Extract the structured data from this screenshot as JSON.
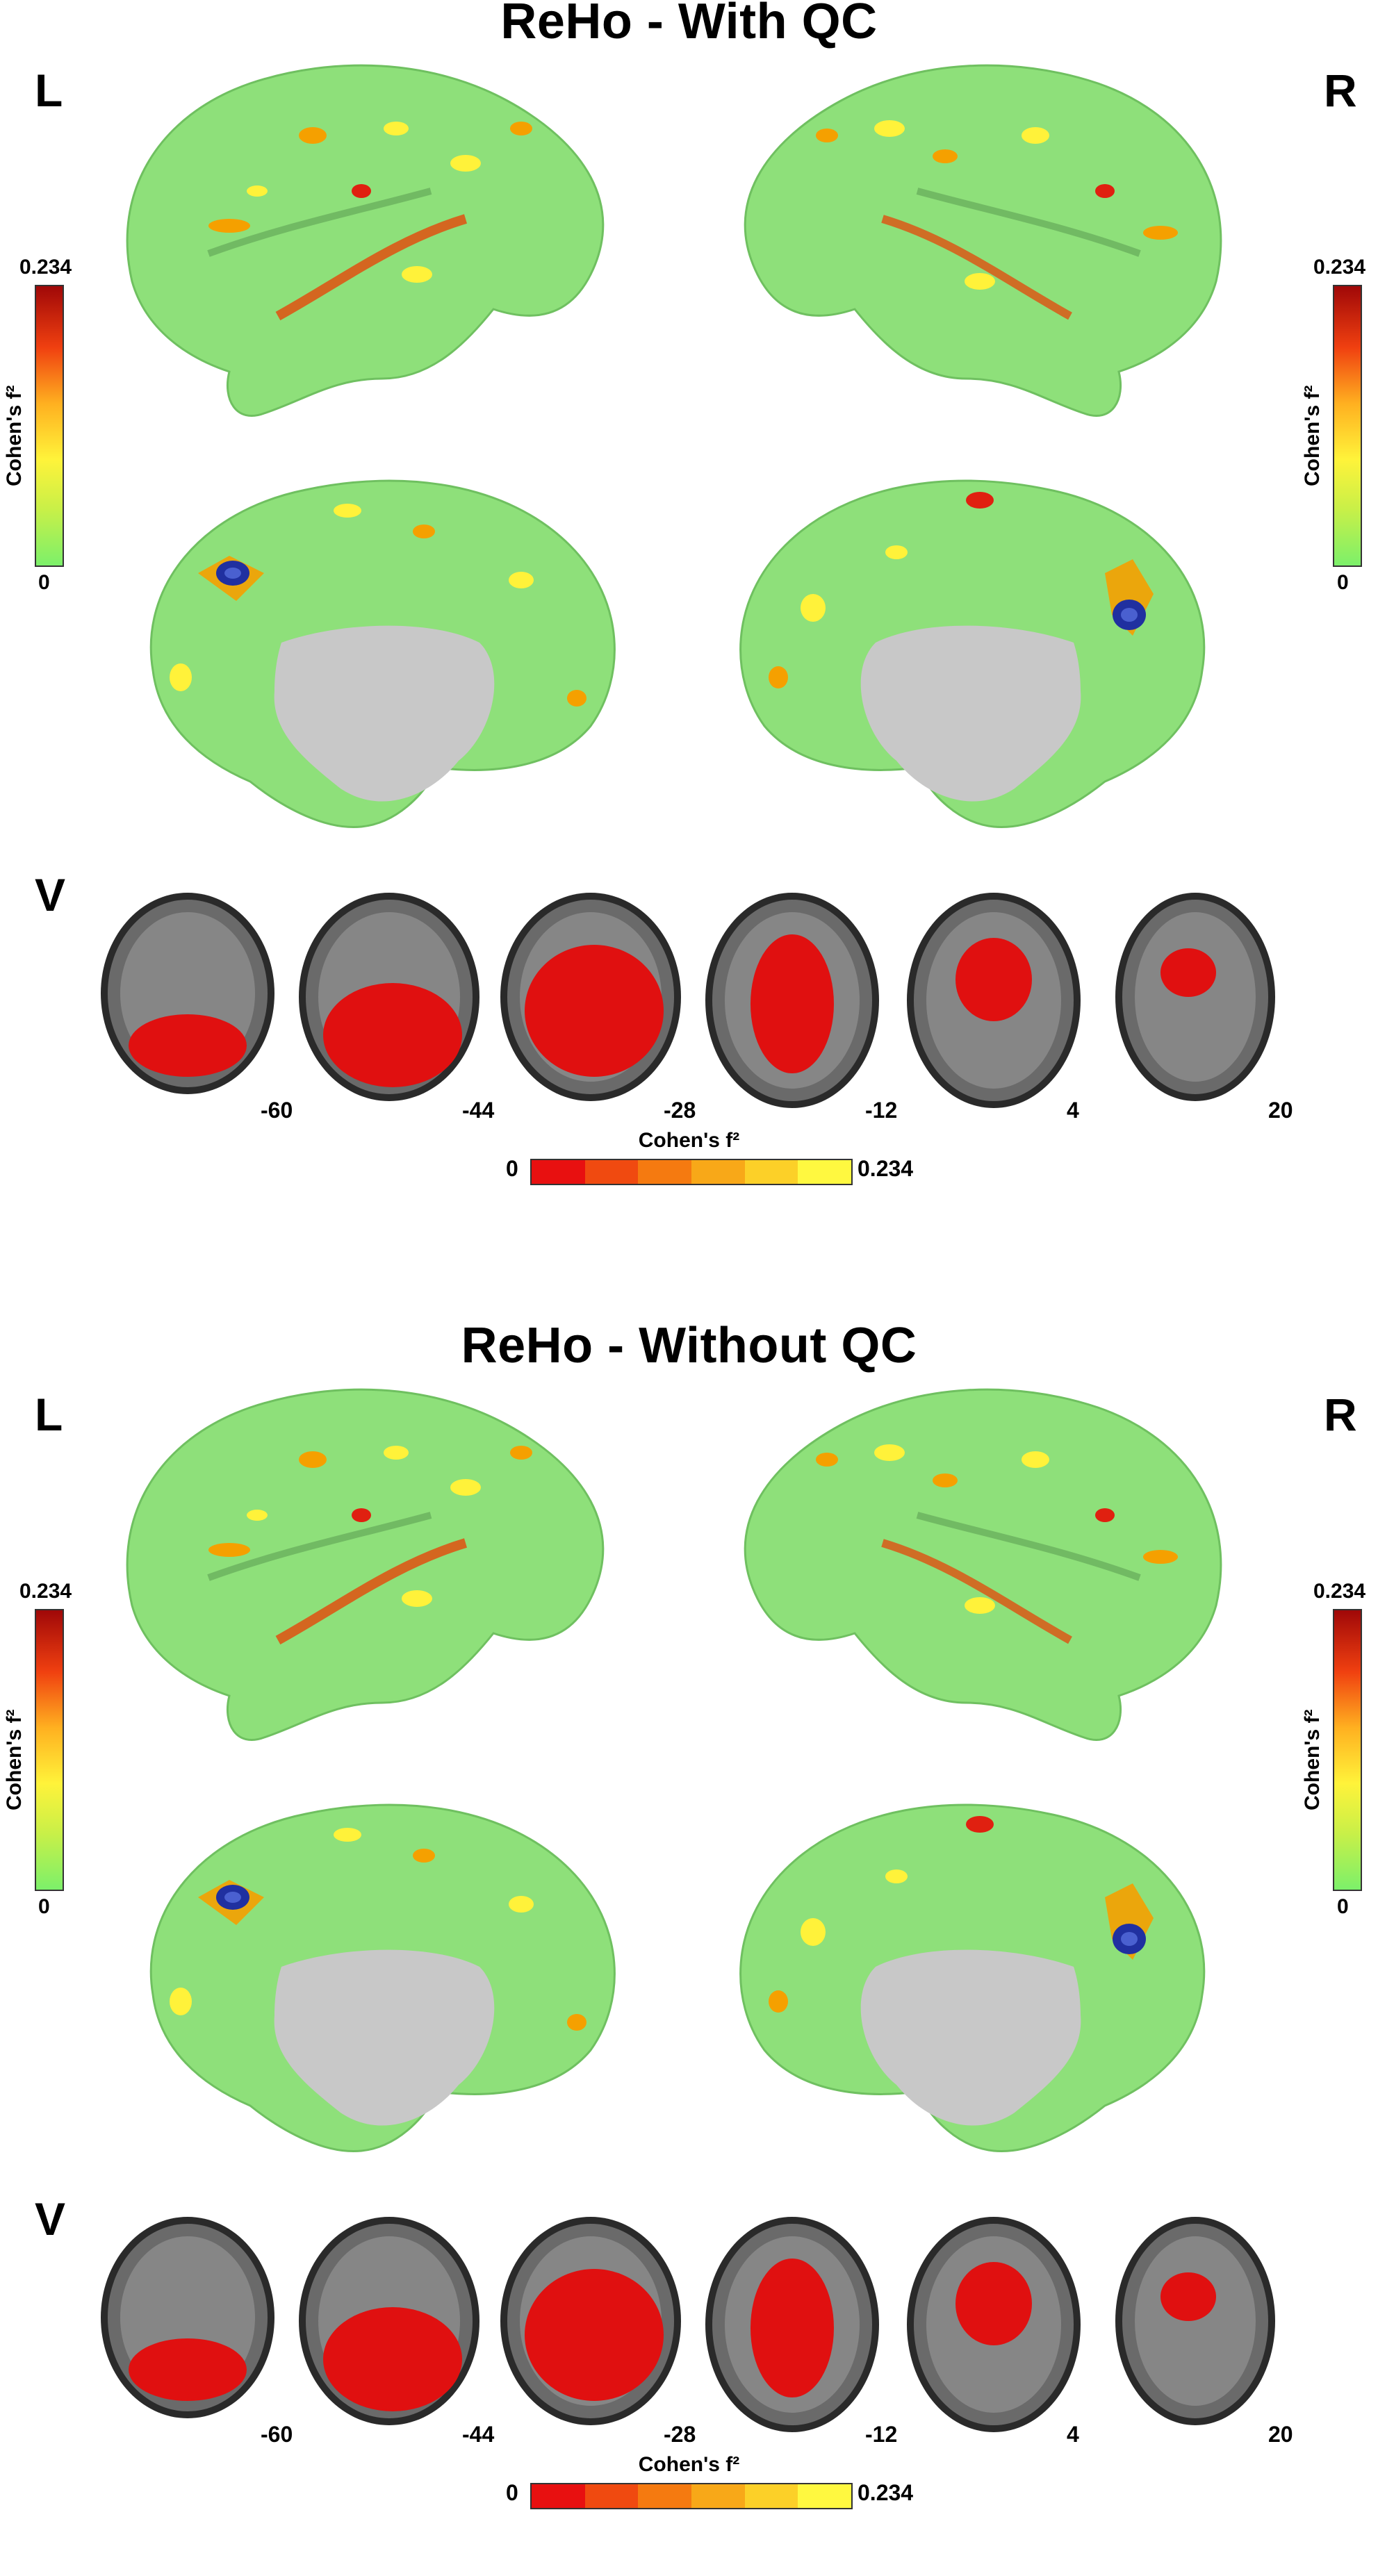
{
  "panels": [
    {
      "title": "ReHo - With QC",
      "left_label": "L",
      "right_label": "R",
      "ventral_label": "V",
      "cbar_vertical": {
        "max": "0.234",
        "min": "0",
        "label": "Cohen's f²"
      },
      "slice_labels": [
        "-60",
        "-44",
        "-28",
        "-12",
        "4",
        "20"
      ],
      "cbar_horizontal": {
        "label": "Cohen's f²",
        "min": "0",
        "max": "0.234"
      }
    },
    {
      "title": "ReHo - Without QC",
      "left_label": "L",
      "right_label": "R",
      "ventral_label": "V",
      "cbar_vertical": {
        "max": "0.234",
        "min": "0",
        "label": "Cohen's f²"
      },
      "slice_labels": [
        "-60",
        "-44",
        "-28",
        "-12",
        "4",
        "20"
      ],
      "cbar_horizontal": {
        "label": "Cohen's f²",
        "min": "0",
        "max": "0.234"
      }
    }
  ],
  "colors": {
    "cortex_base": "#8ee07a",
    "medial_wall": "#c8c8c8",
    "hot_low": "#fff23a",
    "hot_mid": "#f5a000",
    "hot_high": "#d81010",
    "blue_spot": "#2030a0",
    "subcortical_red": "#e01010",
    "mri_gray": "#6a6a6a",
    "horizontal_bar": [
      "#e81010",
      "#f04a10",
      "#f57a10",
      "#f8a818",
      "#fcd028",
      "#fff840"
    ]
  }
}
